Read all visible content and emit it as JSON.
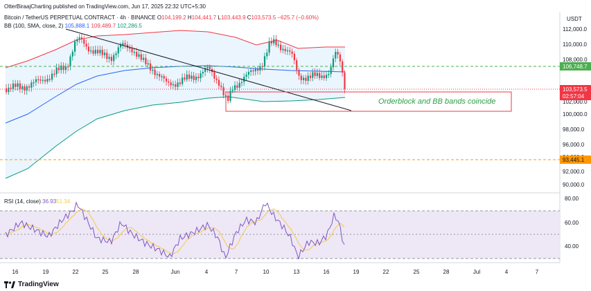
{
  "header": {
    "publisher": "OtterBiraajCharting published on TradingView.com, Jun 17, 2025 22:32 UTC+5:30"
  },
  "symbol": {
    "name": "Bitcoin / TetherUS PERPETUAL CONTRACT · 4h · BINANCE",
    "o_label": "O",
    "o": "104,199.2",
    "h_label": "H",
    "h": "104,441.7",
    "l_label": "L",
    "l": "103,443.9",
    "c_label": "C",
    "c": "103,573.5",
    "change": "−625.7 (−0.60%)"
  },
  "bb": {
    "label": "BB (100, SMA, close, 2)",
    "basis": "105,888.1",
    "upper": "109,489.7",
    "lower": "102,286.5"
  },
  "rsi": {
    "label": "RSI (14, close)",
    "value": "36.93",
    "ma": "51.34"
  },
  "currency": "USDT",
  "price_axis": [
    "112,000.0",
    "110,000.0",
    "108,000.0",
    "106,000.0",
    "104,000.0",
    "102,000.0",
    "100,000.0",
    "98,000.0",
    "96,000.0",
    "94,000.0",
    "92,000.0",
    "90,000.0"
  ],
  "price_tags": {
    "level_high": "106,748.7",
    "last_price": "103,573.5",
    "countdown": "02:57:04",
    "level_low": "93,445.1"
  },
  "rsi_axis": [
    "80.00",
    "60.00",
    "40.00"
  ],
  "time_axis": [
    "16",
    "19",
    "22",
    "25",
    "28",
    "Jun",
    "4",
    "7",
    "10",
    "13",
    "16",
    "19",
    "22",
    "25",
    "28",
    "Jul",
    "4",
    "7"
  ],
  "annotation": "Orderblock and BB bands coincide",
  "brand": "TradingView",
  "colors": {
    "up": "#089981",
    "down": "#f23645",
    "basis": "#2962ff",
    "bb_fill": "#e3f2fd",
    "rsi_line": "#7e57c2",
    "rsi_ma": "#f7c948",
    "level_green": "#4caf50",
    "level_orange": "#ff9800",
    "annotation": "#2e9e45"
  }
}
